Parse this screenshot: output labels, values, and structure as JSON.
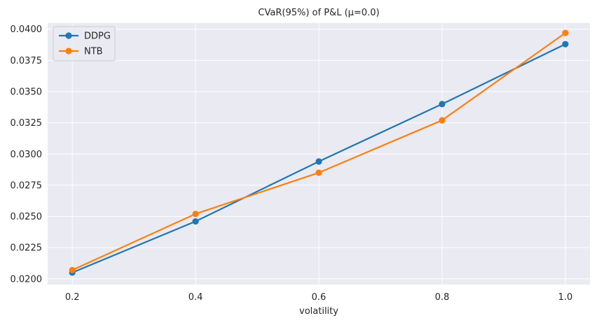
{
  "chart_data": {
    "type": "line",
    "title": "CVaR(95%) of P&L (μ=0.0)",
    "xlabel": "volatility",
    "ylabel": "",
    "x": [
      0.2,
      0.4,
      0.6,
      0.8,
      1.0
    ],
    "xticks": [
      "0.2",
      "0.4",
      "0.6",
      "0.8",
      "1.0"
    ],
    "yticks": [
      "0.0200",
      "0.0225",
      "0.0250",
      "0.0275",
      "0.0300",
      "0.0325",
      "0.0350",
      "0.0375",
      "0.0400"
    ],
    "ytick_values": [
      0.02,
      0.0225,
      0.025,
      0.0275,
      0.03,
      0.0325,
      0.035,
      0.0375,
      0.04
    ],
    "xlim": [
      0.16,
      1.04
    ],
    "ylim": [
      0.01954,
      0.04049
    ],
    "grid": true,
    "legend_position": "upper-left",
    "series": [
      {
        "name": "DDPG",
        "color": "#1f77b4",
        "values": [
          0.0205,
          0.0246,
          0.0294,
          0.034,
          0.0388
        ]
      },
      {
        "name": "NTB",
        "color": "#ff7f0e",
        "values": [
          0.0207,
          0.0252,
          0.0285,
          0.0327,
          0.0397
        ]
      }
    ]
  }
}
